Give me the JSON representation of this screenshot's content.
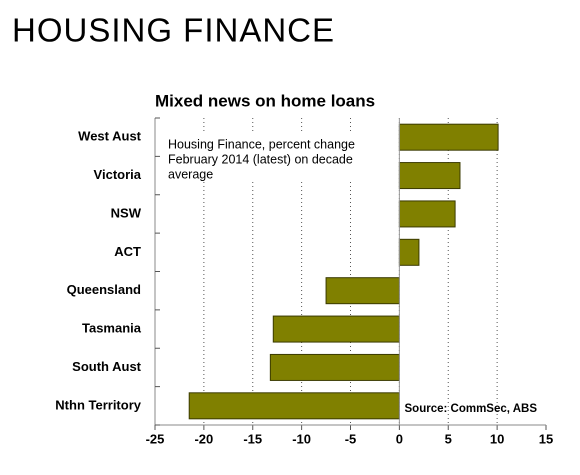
{
  "page_title": "HOUSING FINANCE",
  "chart_data": {
    "type": "barh",
    "title": "Mixed news on home loans",
    "annotation": [
      "Housing Finance, percent change",
      "February 2014 (latest) on decade",
      "average"
    ],
    "source": "Source: CommSec, ABS",
    "categories": [
      "West Aust",
      "Victoria",
      "NSW",
      "ACT",
      "Queensland",
      "Tasmania",
      "South Aust",
      "Nthn Territory"
    ],
    "values": [
      10.1,
      6.2,
      5.7,
      2.0,
      -7.5,
      -12.9,
      -13.2,
      -21.5
    ],
    "color": "#808000",
    "xlim": [
      -25,
      15
    ],
    "xticks": [
      -25,
      -20,
      -15,
      -10,
      -5,
      0,
      5,
      10,
      15
    ],
    "grid": true
  }
}
